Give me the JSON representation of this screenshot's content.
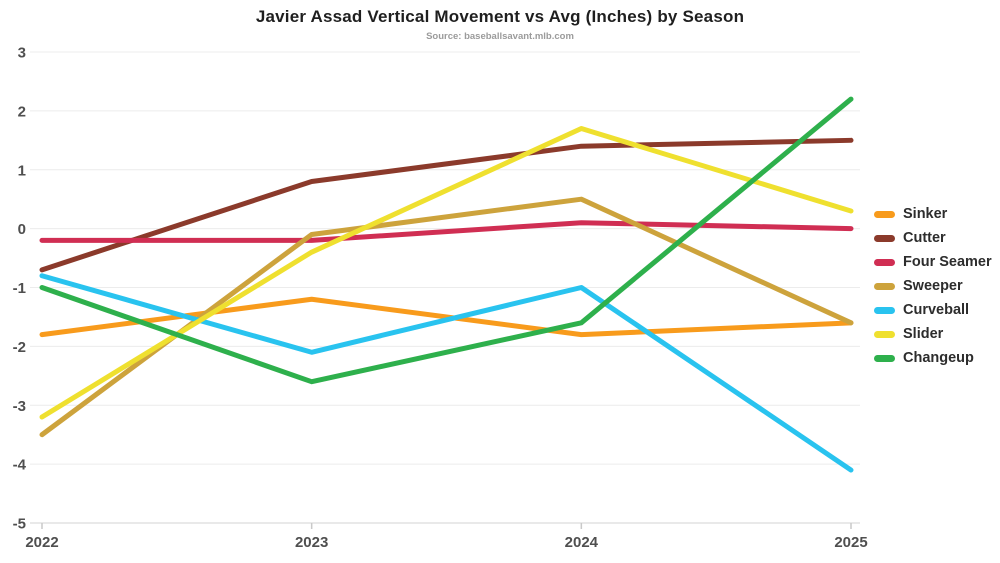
{
  "header": {
    "title": "Javier Assad Vertical Movement vs Avg (Inches) by Season",
    "subtitle": "Source: baseballsavant.mlb.com"
  },
  "chart_data": {
    "type": "line",
    "title": "Javier Assad Vertical Movement vs Avg (Inches) by Season",
    "subtitle": "Source: baseballsavant.mlb.com",
    "xlabel": "",
    "ylabel": "",
    "x": [
      "2022",
      "2023",
      "2024",
      "2025"
    ],
    "series": [
      {
        "name": "Sinker",
        "color": "#F89B1C",
        "values": [
          -1.8,
          -1.2,
          -1.8,
          -1.6
        ]
      },
      {
        "name": "Cutter",
        "color": "#8B3A2B",
        "values": [
          -0.7,
          0.8,
          1.4,
          1.5
        ]
      },
      {
        "name": "Four Seamer",
        "color": "#D02E53",
        "values": [
          -0.2,
          -0.2,
          0.1,
          0.0
        ]
      },
      {
        "name": "Sweeper",
        "color": "#CDA33C",
        "values": [
          -3.5,
          -0.1,
          0.5,
          -1.6
        ]
      },
      {
        "name": "Curveball",
        "color": "#29C3EF",
        "values": [
          -0.8,
          -2.1,
          -1.0,
          -4.1
        ]
      },
      {
        "name": "Slider",
        "color": "#EFE02F",
        "values": [
          -3.2,
          -0.4,
          1.7,
          0.3
        ]
      },
      {
        "name": "Changeup",
        "color": "#2EB04C",
        "values": [
          -1.0,
          -2.6,
          -1.6,
          2.2
        ]
      }
    ],
    "ylim": [
      -5,
      3
    ],
    "yticks": [
      3,
      2,
      1,
      0,
      -1,
      -2,
      -3,
      -4,
      -5
    ],
    "grid": true,
    "legend_position": "right",
    "style": {
      "grid_color": "#ececec",
      "axis_color": "#d3d3d3",
      "tick_color": "#c9c9c9",
      "label_color": "#4f4f4f",
      "line_width": 5
    }
  }
}
